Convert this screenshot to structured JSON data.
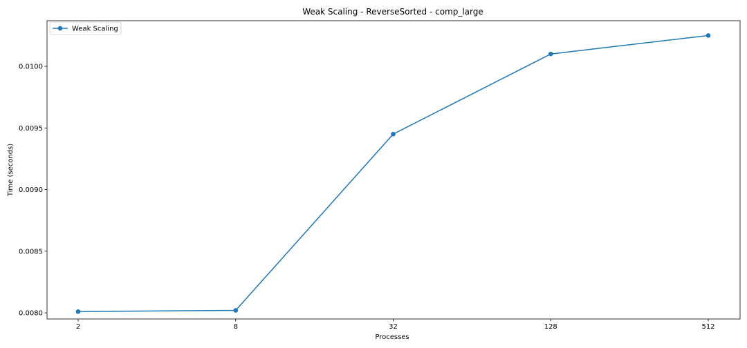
{
  "chart_data": {
    "type": "line",
    "title": "Weak Scaling - ReverseSorted - comp_large",
    "xlabel": "Processes",
    "ylabel": "Time (seconds)",
    "categories": [
      "2",
      "8",
      "32",
      "128",
      "512"
    ],
    "x_scale": "log",
    "ylim": [
      0.00795,
      0.01037
    ],
    "yticks": [
      0.008,
      0.0085,
      0.009,
      0.0095,
      0.01
    ],
    "ytick_labels": [
      "0.0080",
      "0.0085",
      "0.0090",
      "0.0095",
      "0.0100"
    ],
    "grid": false,
    "legend_position": "top-left",
    "series": [
      {
        "name": "Weak Scaling",
        "color": "#1f77b4",
        "marker": "circle",
        "values": [
          0.00801,
          0.00802,
          0.00945,
          0.0101,
          0.01025
        ]
      }
    ]
  }
}
